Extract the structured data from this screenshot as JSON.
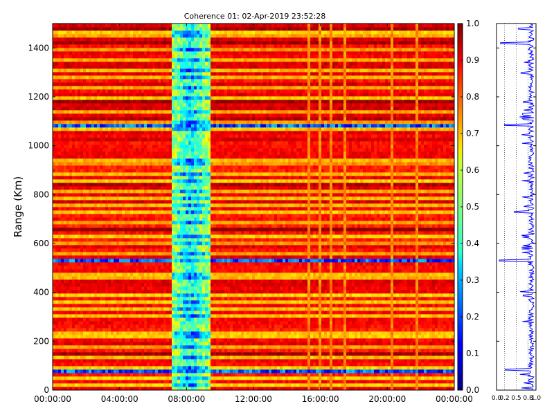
{
  "chart_data": [
    {
      "type": "heatmap",
      "title": "Coherence 01: 02-Apr-2019 23:52:28",
      "xlabel": "",
      "ylabel": "Range (Km)",
      "x_tick_labels": [
        "00:00:00",
        "04:00:00",
        "08:00:00",
        "12:00:00",
        "16:00:00",
        "20:00:00",
        "00:00:00"
      ],
      "x_tick_hours": [
        0,
        4,
        8,
        12,
        16,
        20,
        24
      ],
      "xlim_hours": [
        0,
        24
      ],
      "ylim": [
        0,
        1500
      ],
      "y_ticks": [
        0,
        200,
        400,
        600,
        800,
        1000,
        1200,
        1400
      ],
      "colormap": "jet",
      "grid": false,
      "low_coherence_band_hours": [
        7.1,
        9.4
      ],
      "weak_range_bands_km": [
        20,
        45,
        82,
        92,
        140,
        170,
        215,
        240,
        310,
        330,
        365,
        385,
        460,
        480,
        530,
        560,
        605,
        625,
        690,
        730,
        752,
        790,
        815,
        850,
        880,
        920,
        945,
        1075,
        1090,
        1135,
        1190,
        1200,
        1235,
        1280,
        1315,
        1350,
        1400,
        1455,
        1465
      ],
      "deep_blue_range_bands_km": [
        82,
        530,
        1085
      ],
      "weak_time_columns_hours": [
        15.3,
        16.0,
        16.7,
        17.4,
        20.3,
        21.7
      ]
    },
    {
      "type": "heatmap_colorbar",
      "range": [
        0.0,
        1.0
      ],
      "tick_values": [
        0.0,
        0.1,
        0.2,
        0.3,
        0.4,
        0.5,
        0.6,
        0.7,
        0.8,
        0.9,
        1.0
      ],
      "tick_labels": [
        "0.0",
        "0.1",
        "0.2",
        "0.3",
        "0.4",
        "0.5",
        "0.6",
        "0.7",
        "0.8",
        "0.9",
        "1.0"
      ],
      "colormap": "jet"
    },
    {
      "type": "line",
      "orientation": "vertical",
      "x_label": "",
      "xlim": [
        0,
        1
      ],
      "x_ticks": [
        0.0,
        0.2,
        0.5,
        0.8,
        1.0
      ],
      "x_tick_labels": [
        "0.0",
        "0.2",
        "0.5",
        "0.8",
        "1.0"
      ],
      "ylim": [
        0,
        1500
      ],
      "y_ticks": [
        0,
        200,
        400,
        600,
        800,
        1000,
        1200,
        1400
      ],
      "grid": "x-dotted",
      "series_color": "#0000ff",
      "typical_range": [
        0.7,
        0.95
      ],
      "dips": [
        {
          "range_km": 83,
          "value": 0.22
        },
        {
          "range_km": 530,
          "value": 0.07
        },
        {
          "range_km": 730,
          "value": 0.45
        },
        {
          "range_km": 1085,
          "value": 0.2
        },
        {
          "range_km": 1180,
          "value": 0.68
        },
        {
          "range_km": 1420,
          "value": 0.1
        },
        {
          "range_km": 1480,
          "value": 0.55
        }
      ]
    }
  ]
}
